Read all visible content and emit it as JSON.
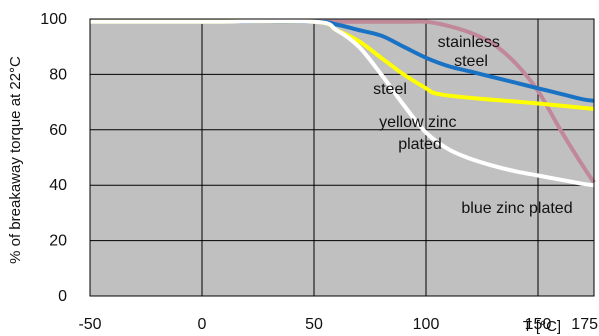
{
  "chart_data": {
    "type": "line",
    "title": "",
    "xlabel": "T [°C]",
    "ylabel": "% of breakaway  torque at 22°C",
    "xlim": [
      -50,
      175
    ],
    "ylim": [
      0,
      100
    ],
    "x_ticks": [
      "-50",
      "0",
      "50",
      "100",
      "150",
      "175"
    ],
    "y_ticks": [
      "0",
      "20",
      "40",
      "60",
      "80",
      "100"
    ],
    "grid": true,
    "plot_background": "#c0c0c0",
    "series": [
      {
        "name": "stainless steel",
        "label_lines": [
          "stainless",
          "steel"
        ],
        "color": "#c08898",
        "x": [
          -50,
          0,
          50,
          90,
          100,
          110,
          120,
          130,
          140,
          150,
          160,
          170,
          175
        ],
        "y": [
          99,
          99,
          99,
          99,
          99,
          97.5,
          95,
          91,
          84,
          74,
          60,
          47,
          41
        ]
      },
      {
        "name": "steel",
        "label_lines": [
          "steel"
        ],
        "color": "#1a72c4",
        "x": [
          -50,
          0,
          50,
          60,
          70,
          80,
          90,
          100,
          110,
          120,
          130,
          140,
          150,
          160,
          170,
          175
        ],
        "y": [
          99,
          99,
          99,
          98,
          96,
          94,
          90,
          86,
          83,
          81,
          79,
          77,
          75,
          73,
          71,
          70.5
        ]
      },
      {
        "name": "yellow zinc plated",
        "label_lines": [
          "yellow zinc",
          "plated"
        ],
        "color": "#ffff00",
        "x": [
          -50,
          0,
          50,
          60,
          70,
          80,
          90,
          100,
          105,
          120,
          150,
          175
        ],
        "y": [
          99,
          99,
          99,
          96,
          92,
          86,
          80,
          75,
          73,
          71.5,
          69.5,
          67.5
        ]
      },
      {
        "name": "blue zinc plated",
        "label_lines": [
          "blue zinc plated"
        ],
        "color": "#ffffff",
        "x": [
          -50,
          0,
          50,
          60,
          70,
          80,
          90,
          100,
          110,
          120,
          130,
          140,
          150,
          160,
          170,
          175
        ],
        "y": [
          99,
          99,
          99,
          96,
          90,
          80,
          69,
          59,
          53,
          49.5,
          47,
          45,
          43.5,
          42,
          40.5,
          40
        ]
      }
    ]
  }
}
